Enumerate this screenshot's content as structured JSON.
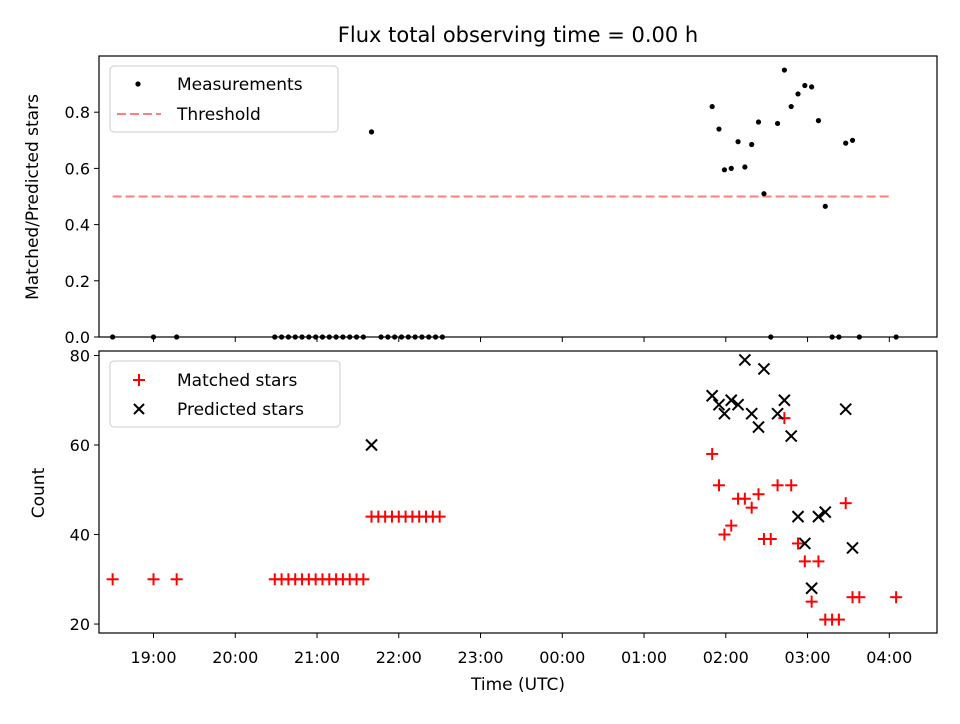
{
  "title": "Flux total observing time = 0.00 h",
  "colors": {
    "measurement": "#000000",
    "threshold": "#ff7f7f",
    "matched": "#ff0000",
    "predicted": "#000000"
  },
  "chart_data": [
    {
      "type": "scatter",
      "ylabel": "Matched/Predicted stars",
      "xlim": [
        "18:20",
        "04:35"
      ],
      "ylim": [
        0,
        1.0
      ],
      "yticks": [
        "0.0",
        "0.2",
        "0.4",
        "0.6",
        "0.8"
      ],
      "legend": {
        "position": "top-left",
        "entries": [
          "Measurements",
          "Threshold"
        ]
      },
      "threshold": {
        "name": "Threshold",
        "value": 0.5,
        "x_start": "18:30",
        "x_end": "04:00"
      },
      "series": [
        {
          "name": "Measurements",
          "marker": "dot",
          "points": [
            [
              "18:30",
              0
            ],
            [
              "19:00",
              0
            ],
            [
              "19:17",
              0
            ],
            [
              "20:29",
              0
            ],
            [
              "20:34",
              0
            ],
            [
              "20:39",
              0
            ],
            [
              "20:44",
              0
            ],
            [
              "20:49",
              0
            ],
            [
              "20:54",
              0
            ],
            [
              "20:59",
              0
            ],
            [
              "21:04",
              0
            ],
            [
              "21:09",
              0
            ],
            [
              "21:14",
              0
            ],
            [
              "21:19",
              0
            ],
            [
              "21:24",
              0
            ],
            [
              "21:29",
              0
            ],
            [
              "21:34",
              0
            ],
            [
              "21:40",
              0.73
            ],
            [
              "21:47",
              0
            ],
            [
              "21:52",
              0
            ],
            [
              "21:57",
              0
            ],
            [
              "22:02",
              0
            ],
            [
              "22:07",
              0
            ],
            [
              "22:12",
              0
            ],
            [
              "22:17",
              0
            ],
            [
              "22:22",
              0
            ],
            [
              "22:27",
              0
            ],
            [
              "22:32",
              0
            ],
            [
              "01:50",
              0.82
            ],
            [
              "01:55",
              0.74
            ],
            [
              "01:59",
              0.595
            ],
            [
              "02:04",
              0.6
            ],
            [
              "02:09",
              0.695
            ],
            [
              "02:14",
              0.605
            ],
            [
              "02:19",
              0.685
            ],
            [
              "02:24",
              0.765
            ],
            [
              "02:28",
              0.51
            ],
            [
              "02:33",
              0
            ],
            [
              "02:38",
              0.76
            ],
            [
              "02:43",
              0.95
            ],
            [
              "02:48",
              0.82
            ],
            [
              "02:53",
              0.865
            ],
            [
              "02:58",
              0.895
            ],
            [
              "03:03",
              0.89
            ],
            [
              "03:08",
              0.77
            ],
            [
              "03:13",
              0.465
            ],
            [
              "03:18",
              0
            ],
            [
              "03:23",
              0
            ],
            [
              "03:28",
              0.69
            ],
            [
              "03:33",
              0.7
            ],
            [
              "03:38",
              0
            ],
            [
              "04:05",
              0
            ]
          ]
        }
      ]
    },
    {
      "type": "scatter",
      "xlabel": "Time (UTC)",
      "ylabel": "Count",
      "xlim": [
        "18:20",
        "04:35"
      ],
      "ylim": [
        18,
        81
      ],
      "yticks": [
        "20",
        "40",
        "60",
        "80"
      ],
      "xticks": [
        "19:00",
        "20:00",
        "21:00",
        "22:00",
        "23:00",
        "00:00",
        "01:00",
        "02:00",
        "03:00",
        "04:00"
      ],
      "legend": {
        "position": "top-left",
        "entries": [
          "Matched stars",
          "Predicted stars"
        ]
      },
      "series": [
        {
          "name": "Matched stars",
          "marker": "plus",
          "points": [
            [
              "18:30",
              30
            ],
            [
              "19:00",
              30
            ],
            [
              "19:17",
              30
            ],
            [
              "20:29",
              30
            ],
            [
              "20:34",
              30
            ],
            [
              "20:39",
              30
            ],
            [
              "20:44",
              30
            ],
            [
              "20:49",
              30
            ],
            [
              "20:54",
              30
            ],
            [
              "20:59",
              30
            ],
            [
              "21:04",
              30
            ],
            [
              "21:09",
              30
            ],
            [
              "21:14",
              30
            ],
            [
              "21:19",
              30
            ],
            [
              "21:24",
              30
            ],
            [
              "21:29",
              30
            ],
            [
              "21:34",
              30
            ],
            [
              "21:40",
              44
            ],
            [
              "21:45",
              44
            ],
            [
              "21:50",
              44
            ],
            [
              "21:55",
              44
            ],
            [
              "22:00",
              44
            ],
            [
              "22:05",
              44
            ],
            [
              "22:10",
              44
            ],
            [
              "22:15",
              44
            ],
            [
              "22:20",
              44
            ],
            [
              "22:25",
              44
            ],
            [
              "22:30",
              44
            ],
            [
              "01:50",
              58
            ],
            [
              "01:55",
              51
            ],
            [
              "01:59",
              40
            ],
            [
              "02:04",
              42
            ],
            [
              "02:09",
              48
            ],
            [
              "02:14",
              48
            ],
            [
              "02:19",
              46
            ],
            [
              "02:24",
              49
            ],
            [
              "02:28",
              39
            ],
            [
              "02:33",
              39
            ],
            [
              "02:38",
              51
            ],
            [
              "02:43",
              66
            ],
            [
              "02:48",
              51
            ],
            [
              "02:53",
              38
            ],
            [
              "02:58",
              34
            ],
            [
              "03:03",
              25
            ],
            [
              "03:08",
              34
            ],
            [
              "03:13",
              21
            ],
            [
              "03:18",
              21
            ],
            [
              "03:23",
              21
            ],
            [
              "03:28",
              47
            ],
            [
              "03:33",
              26
            ],
            [
              "03:38",
              26
            ],
            [
              "04:05",
              26
            ]
          ]
        },
        {
          "name": "Predicted stars",
          "marker": "x",
          "points": [
            [
              "21:40",
              60
            ],
            [
              "01:50",
              71
            ],
            [
              "01:55",
              69
            ],
            [
              "01:59",
              67
            ],
            [
              "02:04",
              70
            ],
            [
              "02:09",
              69
            ],
            [
              "02:14",
              79
            ],
            [
              "02:19",
              67
            ],
            [
              "02:24",
              64
            ],
            [
              "02:28",
              77
            ],
            [
              "02:38",
              67
            ],
            [
              "02:43",
              70
            ],
            [
              "02:48",
              62
            ],
            [
              "02:53",
              44
            ],
            [
              "02:58",
              38
            ],
            [
              "03:03",
              28
            ],
            [
              "03:08",
              44
            ],
            [
              "03:13",
              45
            ],
            [
              "03:28",
              68
            ],
            [
              "03:33",
              37
            ]
          ]
        }
      ]
    }
  ]
}
